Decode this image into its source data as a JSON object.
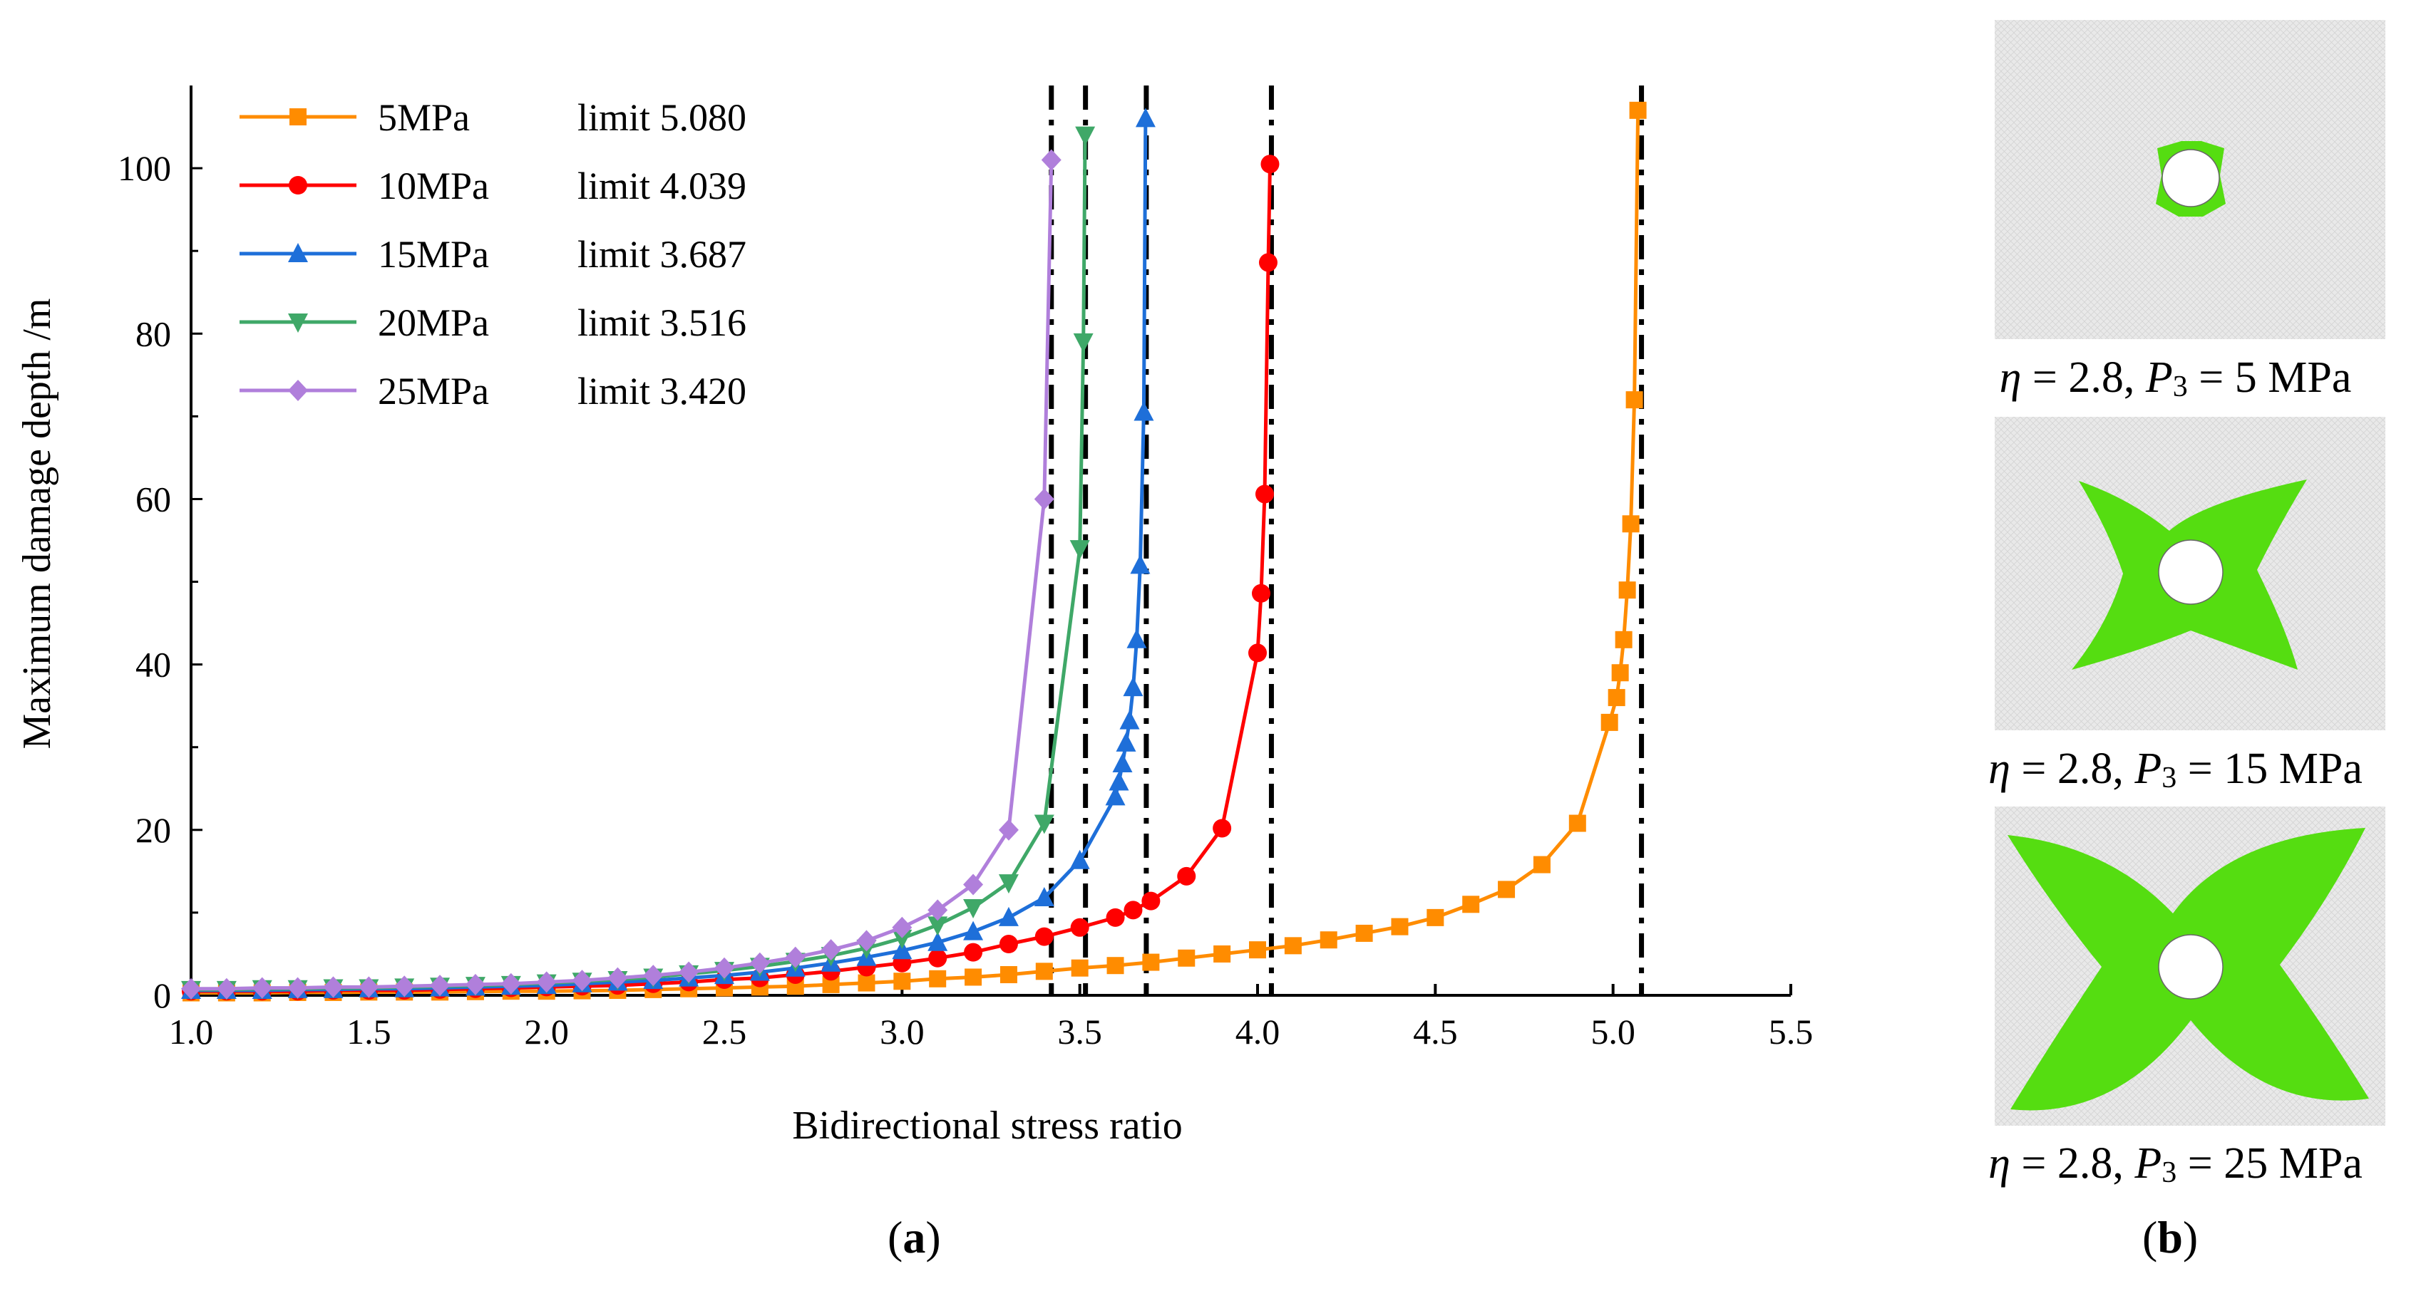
{
  "chart_data": {
    "type": "line",
    "xlabel": "Bidirectional stress ratio",
    "ylabel": "Maximum damage depth /m",
    "xlim": [
      1.0,
      5.5
    ],
    "ylim": [
      0,
      110
    ],
    "xticks": [
      "1.0",
      "1.5",
      "2.0",
      "2.5",
      "3.0",
      "3.5",
      "4.0",
      "4.5",
      "5.0",
      "5.5"
    ],
    "yticks": [
      "0",
      "20",
      "40",
      "60",
      "80",
      "100"
    ],
    "grid": false,
    "legend_position": "top-left",
    "limit_lines": [
      3.42,
      3.516,
      3.687,
      4.039,
      5.08
    ],
    "series": [
      {
        "name": "5MPa",
        "limit_label": "limit 5.080",
        "color": "#ff8c00",
        "marker": "square",
        "x": [
          1.0,
          1.1,
          1.2,
          1.3,
          1.4,
          1.5,
          1.6,
          1.7,
          1.8,
          1.9,
          2.0,
          2.1,
          2.2,
          2.3,
          2.4,
          2.5,
          2.6,
          2.7,
          2.8,
          2.9,
          3.0,
          3.1,
          3.2,
          3.3,
          3.4,
          3.5,
          3.6,
          3.7,
          3.8,
          3.9,
          4.0,
          4.1,
          4.2,
          4.3,
          4.4,
          4.5,
          4.6,
          4.7,
          4.8,
          4.9,
          4.99,
          5.01,
          5.02,
          5.03,
          5.04,
          5.05,
          5.06,
          5.07
        ],
        "y": [
          0.3,
          0.3,
          0.3,
          0.35,
          0.35,
          0.4,
          0.4,
          0.4,
          0.45,
          0.5,
          0.5,
          0.55,
          0.6,
          0.7,
          0.8,
          0.9,
          1.0,
          1.1,
          1.3,
          1.5,
          1.7,
          2.0,
          2.2,
          2.5,
          2.9,
          3.3,
          3.6,
          4.0,
          4.5,
          5.0,
          5.5,
          6.0,
          6.7,
          7.5,
          8.3,
          9.4,
          11.0,
          12.8,
          15.8,
          20.8,
          33.0,
          36.0,
          39.0,
          43.0,
          49.0,
          57.0,
          72.0,
          107.0
        ]
      },
      {
        "name": "10MPa",
        "limit_label": "limit 4.039",
        "color": "#ff0000",
        "marker": "circle",
        "x": [
          1.0,
          1.1,
          1.2,
          1.3,
          1.4,
          1.5,
          1.6,
          1.7,
          1.8,
          1.9,
          2.0,
          2.1,
          2.2,
          2.3,
          2.4,
          2.5,
          2.6,
          2.7,
          2.8,
          2.9,
          3.0,
          3.1,
          3.2,
          3.3,
          3.4,
          3.5,
          3.6,
          3.65,
          3.7,
          3.8,
          3.9,
          4.0,
          4.01,
          4.02,
          4.03,
          4.035
        ],
        "y": [
          0.5,
          0.5,
          0.5,
          0.5,
          0.6,
          0.6,
          0.6,
          0.7,
          0.8,
          0.9,
          1.0,
          1.1,
          1.2,
          1.4,
          1.6,
          1.9,
          2.1,
          2.5,
          2.9,
          3.4,
          3.9,
          4.5,
          5.2,
          6.2,
          7.1,
          8.2,
          9.4,
          10.3,
          11.4,
          14.4,
          20.2,
          41.4,
          48.6,
          60.6,
          88.6,
          100.5
        ]
      },
      {
        "name": "15MPa",
        "limit_label": "limit 3.687",
        "color": "#1e6fd9",
        "marker": "triangle-up",
        "x": [
          1.0,
          1.1,
          1.2,
          1.3,
          1.4,
          1.5,
          1.6,
          1.7,
          1.8,
          1.9,
          2.0,
          2.1,
          2.2,
          2.3,
          2.4,
          2.5,
          2.6,
          2.7,
          2.8,
          2.9,
          3.0,
          3.1,
          3.2,
          3.3,
          3.4,
          3.5,
          3.6,
          3.61,
          3.62,
          3.63,
          3.64,
          3.65,
          3.66,
          3.67,
          3.68,
          3.685
        ],
        "y": [
          0.6,
          0.6,
          0.6,
          0.7,
          0.7,
          0.8,
          0.8,
          0.9,
          1.0,
          1.1,
          1.2,
          1.4,
          1.6,
          1.8,
          2.1,
          2.4,
          2.8,
          3.3,
          3.9,
          4.6,
          5.4,
          6.4,
          7.7,
          9.4,
          11.8,
          16.3,
          24.0,
          25.8,
          28.0,
          30.5,
          33.2,
          37.2,
          43.0,
          52.0,
          70.5,
          106.0
        ]
      },
      {
        "name": "20MPa",
        "limit_label": "limit 3.516",
        "color": "#3fa868",
        "marker": "triangle-down",
        "x": [
          1.0,
          1.1,
          1.2,
          1.3,
          1.4,
          1.5,
          1.6,
          1.7,
          1.8,
          1.9,
          2.0,
          2.1,
          2.2,
          2.3,
          2.4,
          2.5,
          2.6,
          2.7,
          2.8,
          2.9,
          3.0,
          3.1,
          3.2,
          3.3,
          3.4,
          3.5,
          3.51,
          3.515
        ],
        "y": [
          0.7,
          0.7,
          0.8,
          0.8,
          0.9,
          0.9,
          1.0,
          1.1,
          1.2,
          1.3,
          1.5,
          1.7,
          1.9,
          2.2,
          2.6,
          3.0,
          3.5,
          4.1,
          4.8,
          5.7,
          6.9,
          8.5,
          10.6,
          13.6,
          20.8,
          54.0,
          79.0,
          104.0
        ]
      },
      {
        "name": "25MPa",
        "limit_label": "limit 3.420",
        "color": "#b07fdb",
        "marker": "diamond",
        "x": [
          1.0,
          1.1,
          1.2,
          1.3,
          1.4,
          1.5,
          1.6,
          1.7,
          1.8,
          1.9,
          2.0,
          2.1,
          2.2,
          2.3,
          2.4,
          2.5,
          2.6,
          2.7,
          2.8,
          2.9,
          3.0,
          3.1,
          3.2,
          3.3,
          3.4,
          3.42
        ],
        "y": [
          0.8,
          0.8,
          0.9,
          0.9,
          1.0,
          1.0,
          1.1,
          1.2,
          1.3,
          1.4,
          1.6,
          1.8,
          2.1,
          2.4,
          2.8,
          3.3,
          3.9,
          4.6,
          5.5,
          6.6,
          8.2,
          10.3,
          13.4,
          20.0,
          60.0,
          101.0
        ]
      }
    ]
  },
  "panel_labels": {
    "a": "a",
    "b": "b"
  },
  "thumbnails": [
    {
      "eta_symbol": "η",
      "eta_value": "= 2.8,",
      "p_symbol": "P",
      "p_sub": "3",
      "p_value": "= 5 MPa",
      "damage_color": "#55dd11"
    },
    {
      "eta_symbol": "η",
      "eta_value": "= 2.8,",
      "p_symbol": "P",
      "p_sub": "3",
      "p_value": "= 15 MPa",
      "damage_color": "#55dd11"
    },
    {
      "eta_symbol": "η",
      "eta_value": "= 2.8,",
      "p_symbol": "P",
      "p_sub": "3",
      "p_value": "= 25 MPa",
      "damage_color": "#55dd11"
    }
  ]
}
